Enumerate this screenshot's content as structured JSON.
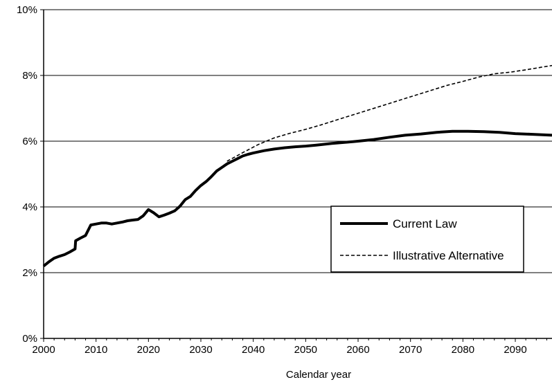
{
  "chart_data": {
    "type": "line",
    "title": "",
    "xlabel": "Calendar year",
    "ylabel": "",
    "xlim": [
      2000,
      2097
    ],
    "ylim": [
      0,
      10
    ],
    "x_ticks": [
      2000,
      2010,
      2020,
      2030,
      2040,
      2050,
      2060,
      2070,
      2080,
      2090
    ],
    "x_tick_labels": [
      "2000",
      "2010",
      "2020",
      "2030",
      "2040",
      "2050",
      "2060",
      "2070",
      "2080",
      "2090"
    ],
    "y_ticks": [
      0,
      2,
      4,
      6,
      8,
      10
    ],
    "y_tick_labels": [
      "0%",
      "2%",
      "4%",
      "6%",
      "8%",
      "10%"
    ],
    "grid": "horizontal",
    "legend_position": "lower-right",
    "series": [
      {
        "name": "Current Law",
        "style": "solid-thick",
        "color": "#000000",
        "x": [
          2000,
          2001,
          2002,
          2003,
          2004,
          2005,
          2006,
          2006.1,
          2007,
          2008,
          2009,
          2010,
          2011,
          2012,
          2013,
          2014,
          2015,
          2016,
          2017,
          2018,
          2019,
          2020,
          2021,
          2022,
          2023,
          2024,
          2025,
          2026,
          2027,
          2028,
          2029,
          2030,
          2031,
          2032,
          2033,
          2034,
          2035,
          2036,
          2037,
          2038,
          2039,
          2040,
          2042,
          2044,
          2046,
          2048,
          2050,
          2052,
          2055,
          2058,
          2060,
          2063,
          2066,
          2069,
          2072,
          2075,
          2078,
          2081,
          2084,
          2087,
          2090,
          2093,
          2097
        ],
        "values": [
          2.2,
          2.33,
          2.44,
          2.5,
          2.55,
          2.63,
          2.72,
          2.97,
          3.05,
          3.13,
          3.45,
          3.48,
          3.51,
          3.51,
          3.48,
          3.51,
          3.54,
          3.58,
          3.6,
          3.62,
          3.73,
          3.92,
          3.82,
          3.7,
          3.75,
          3.81,
          3.88,
          4.02,
          4.22,
          4.32,
          4.5,
          4.65,
          4.77,
          4.92,
          5.09,
          5.2,
          5.31,
          5.39,
          5.47,
          5.55,
          5.6,
          5.64,
          5.71,
          5.76,
          5.8,
          5.83,
          5.85,
          5.88,
          5.93,
          5.97,
          6.0,
          6.05,
          6.12,
          6.18,
          6.22,
          6.27,
          6.3,
          6.3,
          6.29,
          6.27,
          6.23,
          6.21,
          6.18
        ]
      },
      {
        "name": "Illustrative Alternative",
        "style": "dashed",
        "color": "#000000",
        "x": [
          2035,
          2038,
          2041,
          2044,
          2047,
          2050,
          2053,
          2056,
          2059,
          2062,
          2065,
          2068,
          2071,
          2074,
          2077,
          2080,
          2083,
          2086,
          2089,
          2092,
          2095,
          2097
        ],
        "values": [
          5.39,
          5.65,
          5.9,
          6.1,
          6.24,
          6.36,
          6.5,
          6.65,
          6.8,
          6.95,
          7.1,
          7.25,
          7.4,
          7.55,
          7.7,
          7.82,
          7.95,
          8.05,
          8.1,
          8.17,
          8.25,
          8.3
        ]
      }
    ]
  }
}
